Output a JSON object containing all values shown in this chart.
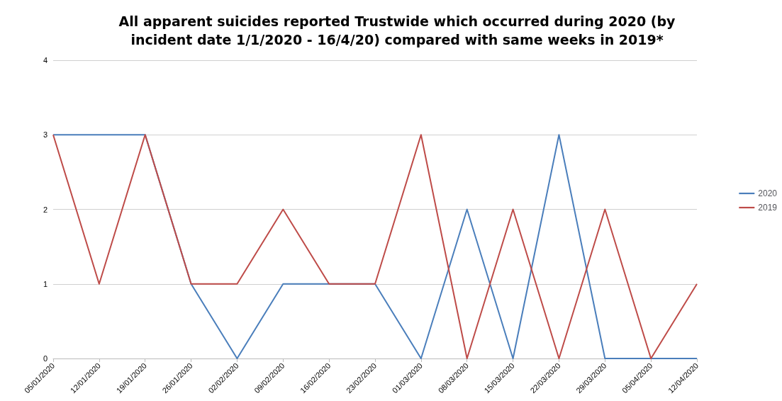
{
  "chart_data": {
    "type": "line",
    "title": "All apparent suicides reported Trustwide which occurred during 2020 (by\nincident date 1/1/2020 - 16/4/20) compared with same weeks in 2019*",
    "categories": [
      "05/01/2020",
      "12/01/2020",
      "19/01/2020",
      "26/01/2020",
      "02/02/2020",
      "09/02/2020",
      "16/02/2020",
      "23/02/2020",
      "01/03/2020",
      "08/03/2020",
      "15/03/2020",
      "22/03/2020",
      "29/03/2020",
      "05/04/2020",
      "12/04/2020"
    ],
    "series": [
      {
        "name": "2020",
        "color": "#4a7ebb",
        "values": [
          3,
          3,
          3,
          1,
          0,
          1,
          1,
          1,
          0,
          2,
          0,
          3,
          0,
          0,
          0
        ]
      },
      {
        "name": "2019",
        "color": "#be4b48",
        "values": [
          3,
          1,
          3,
          1,
          1,
          2,
          1,
          1,
          3,
          0,
          2,
          0,
          2,
          0,
          1
        ]
      }
    ],
    "ylim": [
      0,
      4
    ],
    "yticks": [
      0,
      1,
      2,
      3,
      4
    ],
    "grid": "y",
    "legend": "right",
    "marker": "none",
    "line_style": "solid"
  }
}
